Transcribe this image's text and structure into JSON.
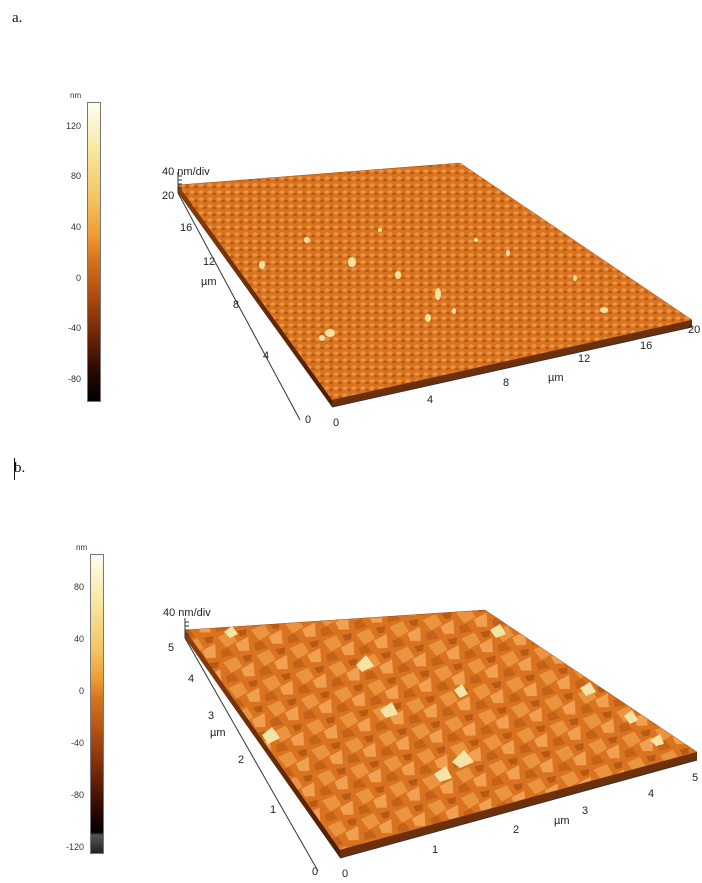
{
  "panels": [
    {
      "label": "a.",
      "colorbar": {
        "unit": "nm",
        "ticks": [
          "120",
          "80",
          "40",
          "0",
          "-40",
          "-80"
        ]
      },
      "scale_label": "40 nm/div",
      "axis_unit": "µm",
      "x_ticks": [
        "0",
        "4",
        "8",
        "12",
        "16",
        "20"
      ],
      "y_ticks": [
        "0",
        "4",
        "8",
        "12",
        "16",
        "20"
      ]
    },
    {
      "label": "b.",
      "colorbar": {
        "unit": "nm",
        "ticks": [
          "80",
          "40",
          "0",
          "-40",
          "-80",
          "-120"
        ]
      },
      "scale_label": "40 nm/div",
      "axis_unit": "µm",
      "x_ticks": [
        "0",
        "1",
        "2",
        "3",
        "4",
        "5"
      ],
      "y_ticks": [
        "0",
        "1",
        "2",
        "3",
        "4",
        "5"
      ]
    }
  ],
  "colors": {
    "surface_base": "#d9731f",
    "surface_light": "#f0a050",
    "surface_peak": "#f7e6a8",
    "surface_dark": "#a84e10"
  }
}
